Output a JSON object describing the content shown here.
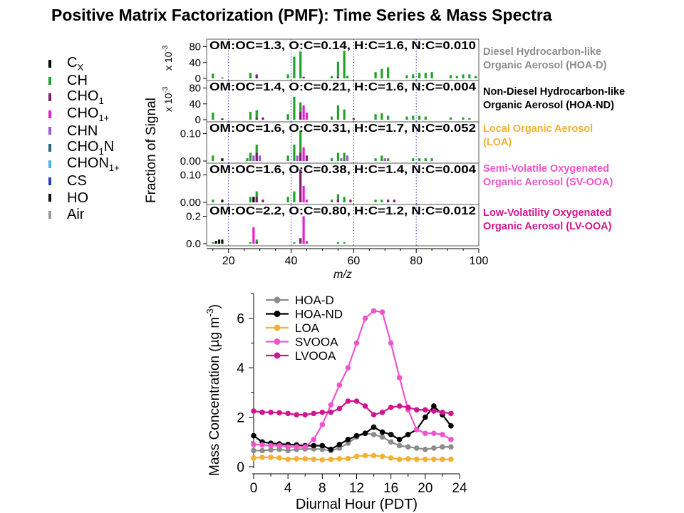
{
  "title": "Positive Matrix Factorization (PMF): Time Series & Mass Spectra",
  "ion_categories": [
    {
      "label": "C",
      "sub": "X",
      "color": "#000000"
    },
    {
      "label": "CH",
      "sub": "",
      "color": "#22a22a"
    },
    {
      "label": "CHO",
      "sub": "1",
      "color": "#7b1f6e"
    },
    {
      "label": "CHO",
      "sub": "1+",
      "color": "#e61ed7"
    },
    {
      "label": "CHN",
      "sub": "",
      "color": "#9b59d6"
    },
    {
      "label": "CHO",
      "sub": "1",
      "suffix": "N",
      "color": "#1f6a8a"
    },
    {
      "label": "CHON",
      "sub": "1+",
      "color": "#47b6e6"
    },
    {
      "label": "CS",
      "sub": "",
      "color": "#2b3ecf"
    },
    {
      "label": "HO",
      "sub": "",
      "color": "#111111"
    },
    {
      "label": "Air",
      "sub": "",
      "color": "#9a9a9a"
    }
  ],
  "factors": [
    {
      "name_line1": "Diesel Hydrocarbon-like",
      "name_line2": "Organic Aerosol (HOA-D)",
      "color": "#8c8c8c",
      "elemental": "OM:OC=1.3, O:C=0.14, H:C=1.6, N:C=0.010"
    },
    {
      "name_line1": "Non-Diesel Hydrocarbon-like",
      "name_line2": "Organic Aerosol (HOA-ND)",
      "color": "#000000",
      "elemental": "OM:OC=1.4, O:C=0.21, H:C=1.6, N:C=0.004"
    },
    {
      "name_line1": "Local Organic Aerosol",
      "name_line2": "(LOA)",
      "color": "#f2b134",
      "elemental": "OM:OC=1.6, O:C=0.31, H:C=1.7, N:C=0.052"
    },
    {
      "name_line1": "Semi-Volatile Oxygenated",
      "name_line2": "Organic Aerosol (SV-OOA)",
      "color": "#ee55cc",
      "elemental": "OM:OC=1.6, O:C=0.38, H:C=1.4, N:C=0.004"
    },
    {
      "name_line1": "Low-Volatility Oxygenated",
      "name_line2": "Organic Aerosol (LV-OOA)",
      "color": "#d0168f",
      "elemental": "OM:OC=2.2, O:C=0.80, H:C=1.2, N:C=0.012"
    }
  ],
  "spectra_chart": {
    "ylabel": "Fraction of Signal",
    "xlabel": "m/z",
    "xlim": [
      13,
      100
    ],
    "xticks": [
      "20",
      "40",
      "60",
      "80",
      "100"
    ],
    "grid_mz": [
      20,
      40,
      60,
      80
    ],
    "panels": [
      {
        "ylim": [
          0,
          90
        ],
        "ticks": [
          "0",
          "40",
          "80"
        ],
        "tick_vals": [
          0,
          40,
          80
        ],
        "scale_label": "x 10",
        "scale_exp": "-3"
      },
      {
        "ylim": [
          0,
          90
        ],
        "ticks": [
          "0",
          "40",
          "80"
        ],
        "tick_vals": [
          0,
          40,
          80
        ],
        "scale_label": "x 10",
        "scale_exp": "-3"
      },
      {
        "ylim": [
          0,
          0.13
        ],
        "ticks": [
          "0.00",
          "0.10"
        ],
        "tick_vals": [
          0,
          0.1
        ]
      },
      {
        "ylim": [
          0,
          0.13
        ],
        "ticks": [
          "0.00",
          "0.10"
        ],
        "tick_vals": [
          0,
          0.1
        ]
      },
      {
        "ylim": [
          0,
          0.26
        ],
        "ticks": [
          "0.0",
          "0.2"
        ],
        "tick_vals": [
          0,
          0.2
        ]
      }
    ]
  },
  "chart_data": {
    "type": "line",
    "xlabel": "Diurnal Hour (PDT)",
    "ylabel": "Mass Concentration (µg m",
    "ylabel_exp": "-3",
    "ylabel_close": ")",
    "xlim": [
      0,
      24
    ],
    "ylim": [
      0,
      7
    ],
    "xticks": [
      "0",
      "4",
      "8",
      "12",
      "16",
      "20",
      "24"
    ],
    "yticks": [
      "0",
      "2",
      "4",
      "6"
    ],
    "x": [
      0,
      1,
      2,
      3,
      4,
      5,
      6,
      7,
      8,
      9,
      10,
      11,
      12,
      13,
      14,
      15,
      16,
      17,
      18,
      19,
      20,
      21,
      22,
      23
    ],
    "series": [
      {
        "name": "HOA-D",
        "color": "#8c8c8c",
        "values": [
          0.65,
          0.65,
          0.68,
          0.7,
          0.65,
          0.7,
          0.72,
          0.72,
          0.7,
          0.65,
          0.75,
          0.95,
          1.2,
          1.35,
          1.3,
          1.2,
          1.0,
          0.85,
          0.8,
          0.75,
          0.7,
          0.75,
          0.8,
          0.8
        ]
      },
      {
        "name": "HOA-ND",
        "color": "#000000",
        "values": [
          1.25,
          1.0,
          0.95,
          0.92,
          0.9,
          0.88,
          0.85,
          0.85,
          0.85,
          0.7,
          0.9,
          1.1,
          1.25,
          1.35,
          1.6,
          1.4,
          1.3,
          1.1,
          1.3,
          1.5,
          2.0,
          2.45,
          2.1,
          1.65
        ]
      },
      {
        "name": "LOA",
        "color": "#f2b134",
        "values": [
          0.35,
          0.38,
          0.38,
          0.35,
          0.3,
          0.32,
          0.32,
          0.3,
          0.28,
          0.3,
          0.32,
          0.33,
          0.42,
          0.45,
          0.45,
          0.42,
          0.35,
          0.3,
          0.32,
          0.3,
          0.3,
          0.3,
          0.3,
          0.3
        ]
      },
      {
        "name": "SVOOA",
        "color": "#ee55cc",
        "values": [
          0.9,
          0.88,
          0.85,
          0.85,
          0.8,
          0.8,
          0.8,
          1.1,
          1.7,
          2.5,
          3.3,
          4.0,
          5.0,
          6.0,
          6.3,
          6.25,
          5.0,
          3.6,
          2.3,
          1.5,
          1.35,
          1.35,
          1.3,
          1.1
        ]
      },
      {
        "name": "LVOOA",
        "color": "#d0168f",
        "values": [
          2.25,
          2.2,
          2.2,
          2.18,
          2.15,
          2.1,
          2.1,
          2.15,
          2.2,
          2.2,
          2.35,
          2.65,
          2.65,
          2.45,
          2.1,
          2.2,
          2.4,
          2.45,
          2.4,
          2.3,
          2.3,
          2.25,
          2.2,
          2.15
        ]
      }
    ],
    "legend_placement": "top-left"
  }
}
